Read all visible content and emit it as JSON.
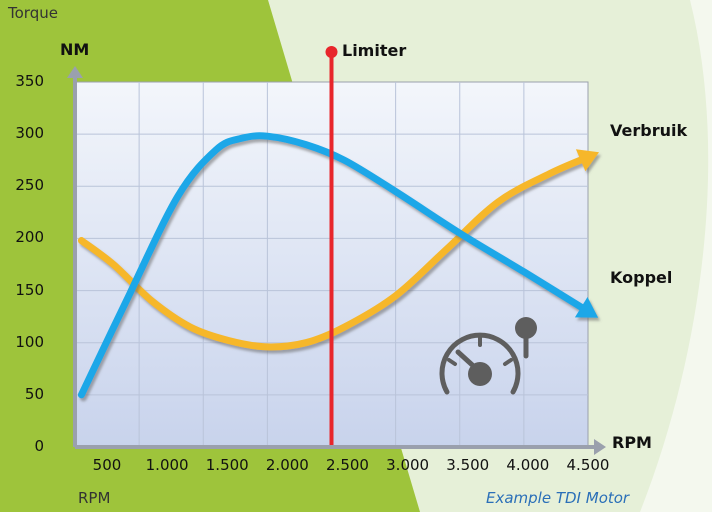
{
  "header": {
    "torque_label": "Torque",
    "unit_label": "NM",
    "rpm_axis_label": "RPM",
    "rpm_bottom_label": "RPM",
    "caption": "Example TDI Motor",
    "limiter_label": "Limiter"
  },
  "chart_data": {
    "type": "line",
    "title": "",
    "xlabel": "RPM",
    "ylabel": "NM",
    "xlim": [
      500,
      4500
    ],
    "ylim": [
      0,
      350
    ],
    "x_ticks": [
      "500",
      "1.000",
      "1.500",
      "2.000",
      "2.500",
      "3.000",
      "3.500",
      "4.000",
      "4.500"
    ],
    "y_ticks": [
      "0",
      "50",
      "100",
      "150",
      "200",
      "250",
      "300",
      "350"
    ],
    "grid": true,
    "limiter": {
      "x": 2500,
      "label": "Limiter",
      "color": "#e8262b"
    },
    "series": [
      {
        "name": "Koppel",
        "color": "#1aa7e8",
        "x": [
          550,
          900,
          1300,
          1600,
          1800,
          2000,
          2300,
          2600,
          3000,
          3500,
          4000,
          4500
        ],
        "y": [
          50,
          140,
          240,
          285,
          296,
          298,
          290,
          275,
          245,
          205,
          168,
          130
        ]
      },
      {
        "name": "Verbruik",
        "color": "#f6b72c",
        "x": [
          550,
          800,
          1100,
          1400,
          1700,
          2000,
          2300,
          2600,
          3000,
          3400,
          3800,
          4200,
          4500
        ],
        "y": [
          198,
          175,
          140,
          115,
          102,
          96,
          100,
          115,
          145,
          190,
          235,
          262,
          278
        ]
      }
    ],
    "colors": {
      "left_band": "#9ec43b",
      "right_band": "#e6f0d8",
      "plot_top": "#f2f5fb",
      "plot_bottom": "#c9d4ec",
      "grid": "#b9c3d9",
      "axis": "#9aa0ad",
      "icon": "#5e5e5e"
    }
  }
}
